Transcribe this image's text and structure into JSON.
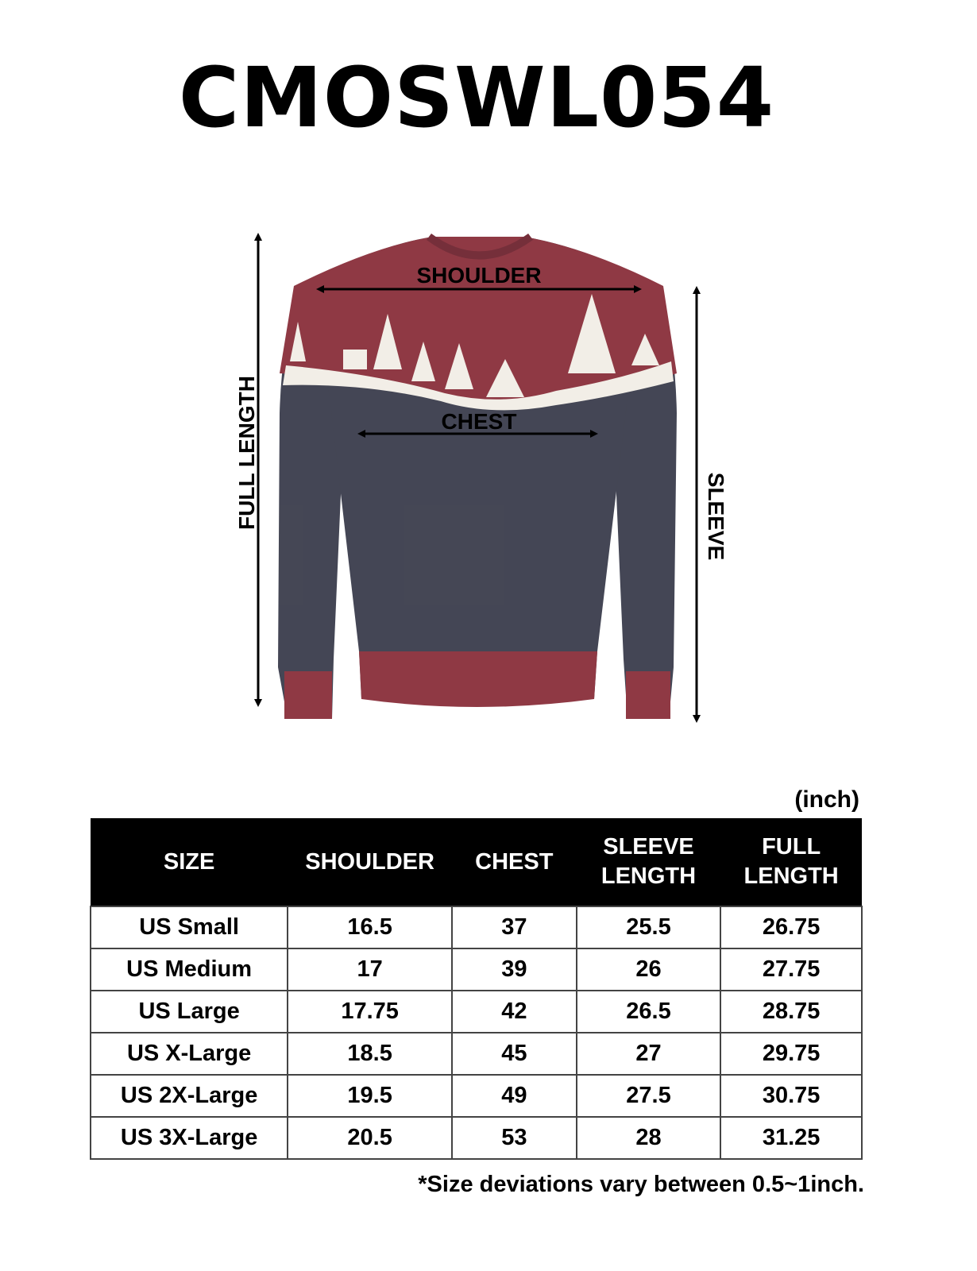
{
  "title": "CMOSWL054",
  "diagram": {
    "shoulder_label": "SHOULDER",
    "chest_label": "CHEST",
    "full_length_label": "FULL LENGTH",
    "sleeve_label": "SLEEVE",
    "colors": {
      "maroon": "#8a2f3b",
      "navy": "#3b3d4c",
      "cream": "#f2eee6"
    }
  },
  "unit": "(inch)",
  "table": {
    "headers": [
      "SIZE",
      "SHOULDER",
      "CHEST",
      "SLEEVE\nLENGTH",
      "FULL\nLENGTH"
    ],
    "rows": [
      [
        "US Small",
        "16.5",
        "37",
        "25.5",
        "26.75"
      ],
      [
        "US Medium",
        "17",
        "39",
        "26",
        "27.75"
      ],
      [
        "US Large",
        "17.75",
        "42",
        "26.5",
        "28.75"
      ],
      [
        "US X-Large",
        "18.5",
        "45",
        "27",
        "29.75"
      ],
      [
        "US 2X-Large",
        "19.5",
        "49",
        "27.5",
        "30.75"
      ],
      [
        "US 3X-Large",
        "20.5",
        "53",
        "28",
        "31.25"
      ]
    ]
  },
  "footnote": "*Size deviations vary between 0.5~1inch."
}
